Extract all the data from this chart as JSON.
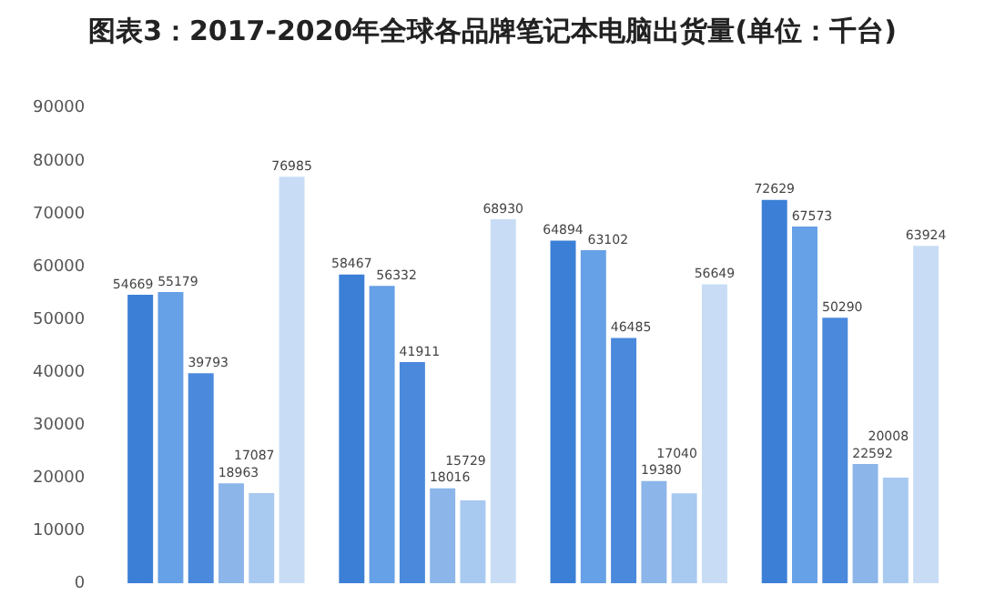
{
  "chart_data": {
    "type": "bar",
    "title": "图表3：2017-2020年全球各品牌笔记本电脑出货量(单位：千台)",
    "categories": [
      null,
      null,
      null,
      null
    ],
    "series": [
      {
        "color": "#3b7fd6",
        "values": [
          54669,
          58467,
          64894,
          72629
        ]
      },
      {
        "color": "#66a0e6",
        "values": [
          55179,
          56332,
          63102,
          67573
        ]
      },
      {
        "color": "#4a89dc",
        "values": [
          39793,
          41911,
          46485,
          50290
        ]
      },
      {
        "color": "#8cb6ea",
        "values": [
          18963,
          18016,
          19380,
          22592
        ]
      },
      {
        "color": "#a8c9f0",
        "values": [
          17087,
          15729,
          17040,
          20008
        ]
      },
      {
        "color": "#c8ddf5",
        "values": [
          76985,
          68930,
          56649,
          63924
        ]
      }
    ],
    "ylim": [
      0,
      90000
    ],
    "yticks": [
      0,
      10000,
      20000,
      30000,
      40000,
      50000,
      60000,
      70000,
      80000,
      90000
    ],
    "grid": false,
    "legend": false,
    "data_labels": true
  }
}
